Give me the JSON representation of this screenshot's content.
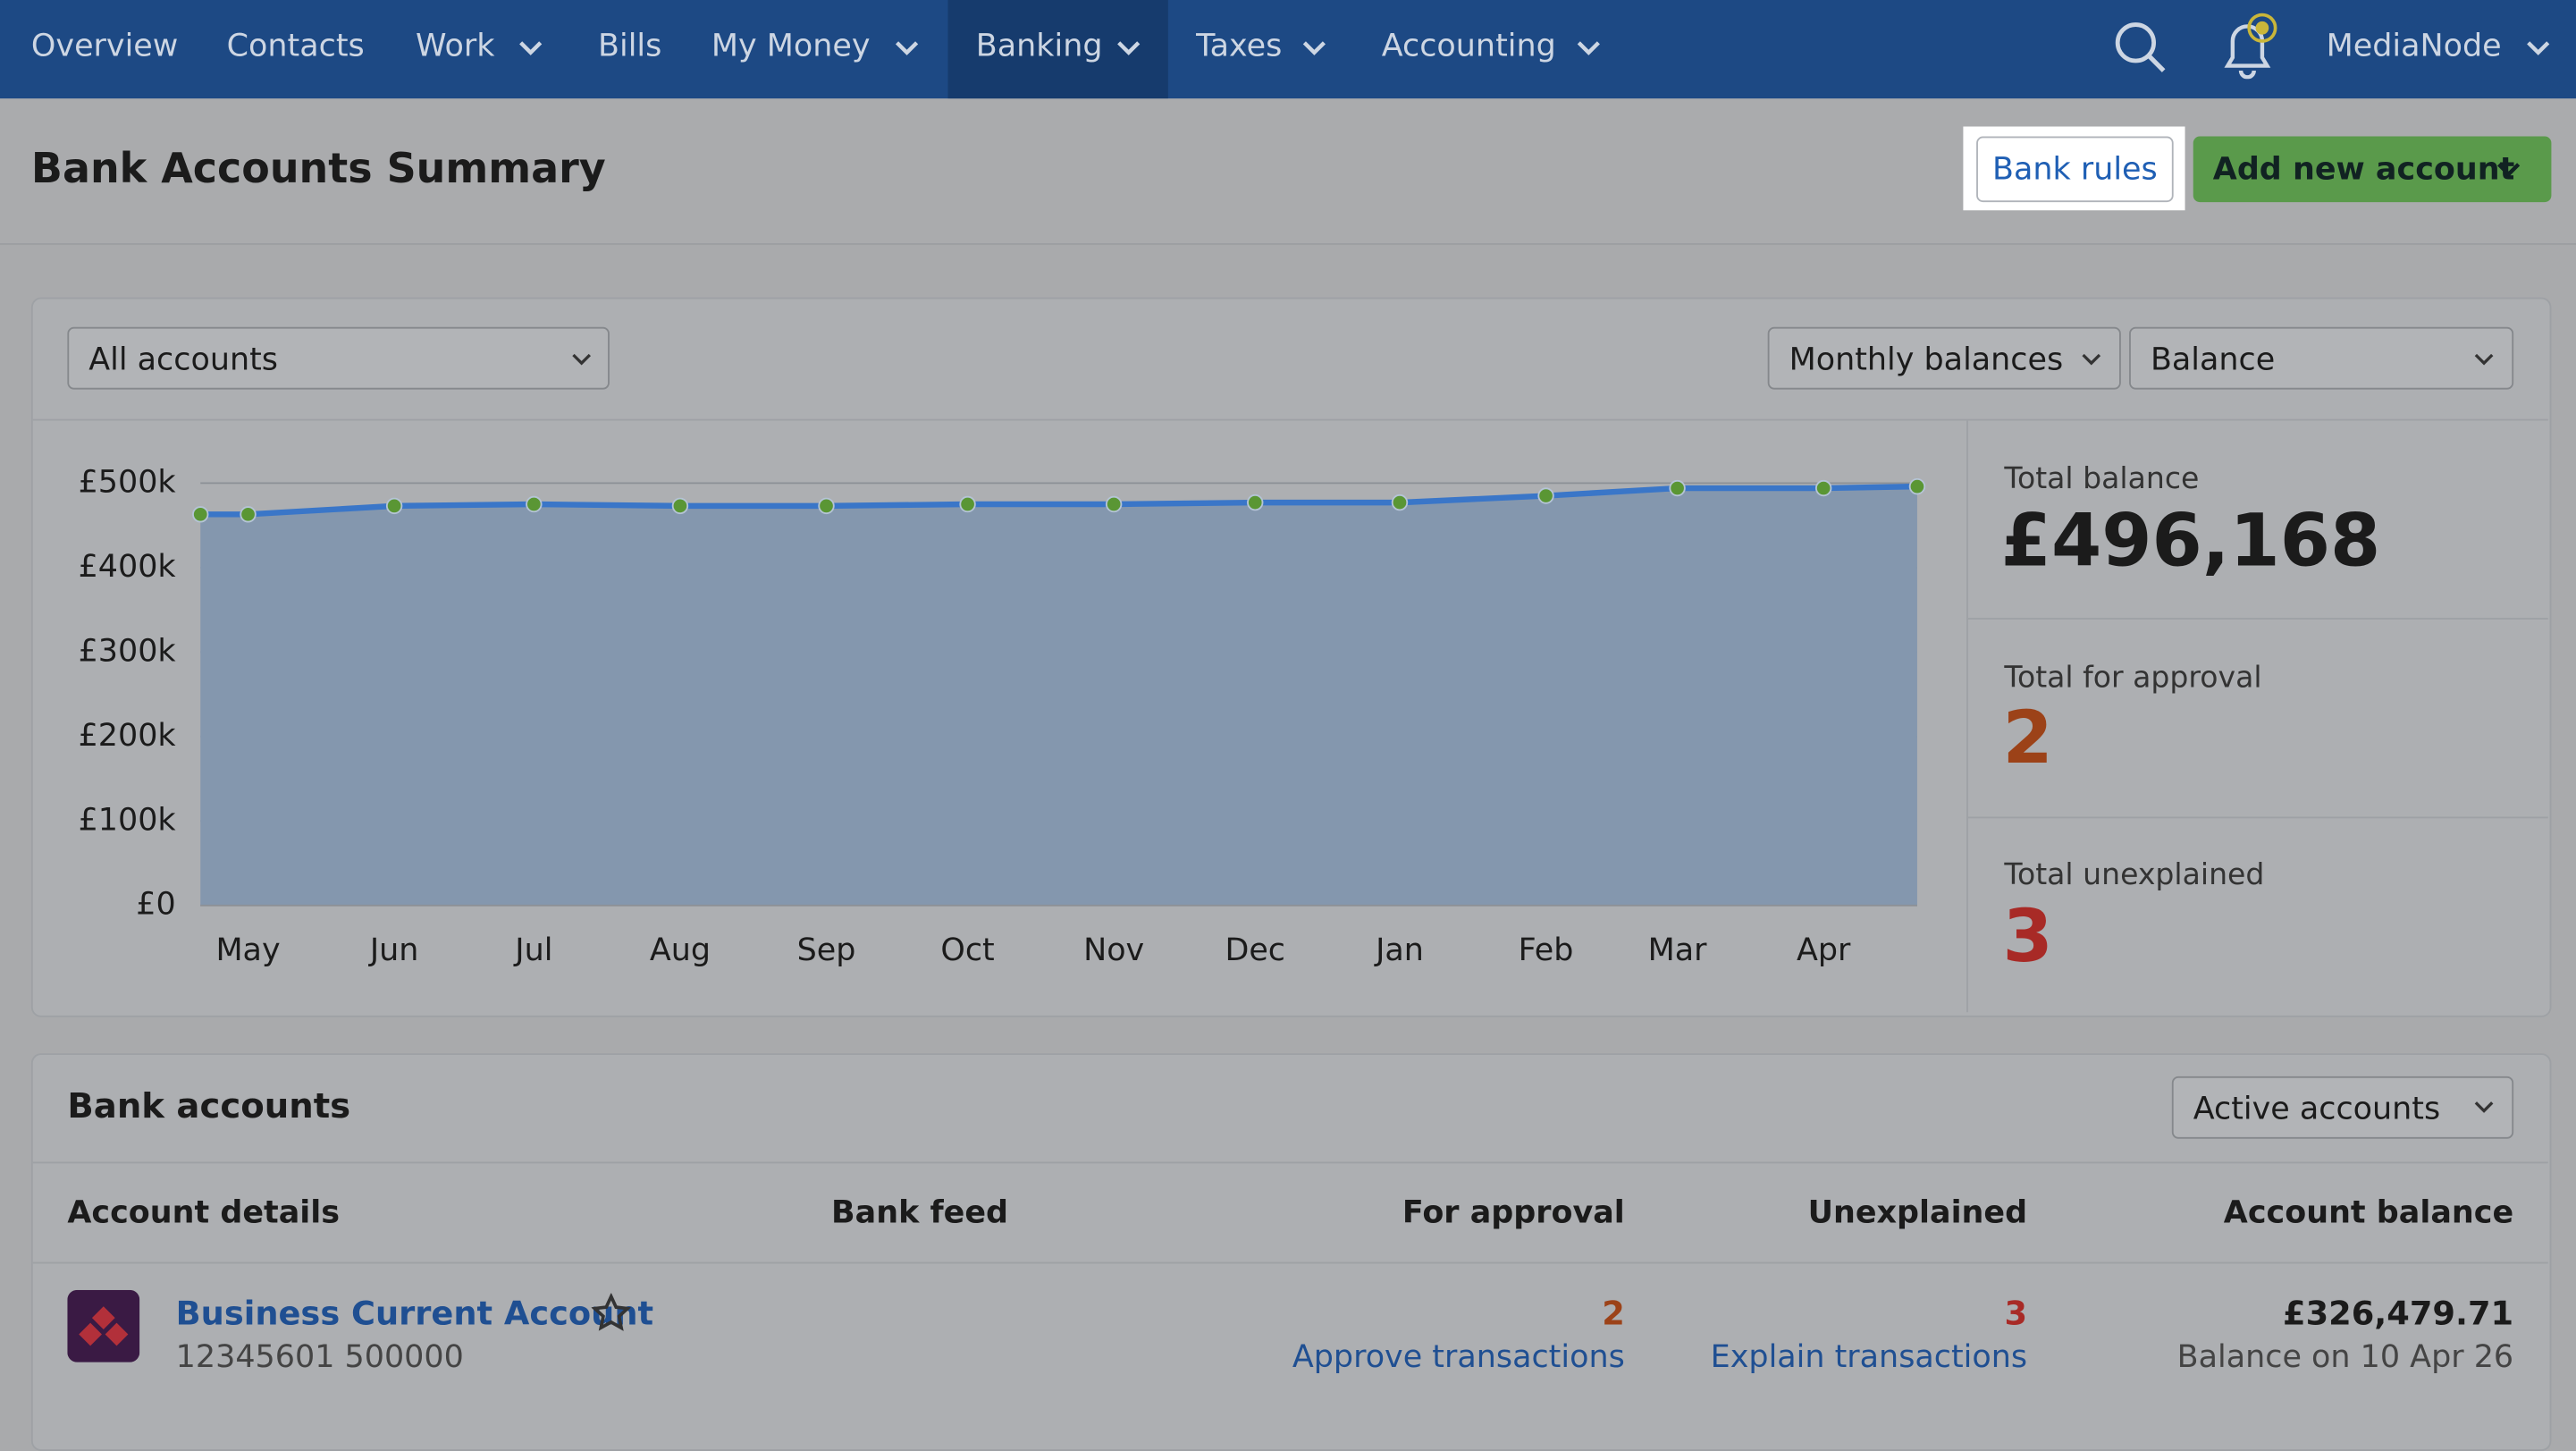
{
  "nav": {
    "items": [
      "Overview",
      "Contacts",
      "Work",
      "Bills",
      "My Money",
      "Banking",
      "Taxes",
      "Accounting"
    ],
    "user": "MediaNode"
  },
  "header": {
    "title": "Bank Accounts Summary",
    "bank_rules": "Bank rules",
    "add_account": "Add new account"
  },
  "filters": {
    "accounts": "All accounts",
    "period": "Monthly balances",
    "measure": "Balance"
  },
  "chart": {
    "type": "line",
    "categories": [
      null,
      "May",
      "Jun",
      "Jul",
      "Aug",
      "Sep",
      "Oct",
      "Nov",
      "Dec",
      "Jan",
      "Feb",
      "Mar",
      "Apr",
      null
    ],
    "values": [
      463000,
      463000,
      473000,
      475000,
      473000,
      473000,
      475000,
      475000,
      477000,
      477000,
      485000,
      494000,
      494000,
      496000
    ],
    "ylim": [
      0,
      500000
    ],
    "yticks": [
      {
        "value": 0,
        "label": "£0"
      },
      {
        "value": 100000,
        "label": "£100k"
      },
      {
        "value": 200000,
        "label": "£200k"
      },
      {
        "value": 300000,
        "label": "£300k"
      },
      {
        "value": 400000,
        "label": "£400k"
      },
      {
        "value": 500000,
        "label": "£500k"
      }
    ],
    "grid": true,
    "line_color": "#3a76c8",
    "fill_color": "#8497ae",
    "marker_color": "#5a9634"
  },
  "stats": [
    {
      "label": "Total balance",
      "value": "£496,168"
    },
    {
      "label": "Total for approval",
      "value": "2"
    },
    {
      "label": "Total unexplained",
      "value": "3"
    }
  ],
  "accounts": {
    "title": "Bank accounts",
    "filter": "Active accounts",
    "columns": [
      "Account details",
      "Bank feed",
      "For approval",
      "Unexplained",
      "Account balance"
    ],
    "rows": [
      {
        "name": "Business Current Account",
        "number": "12345601 500000",
        "for_approval": "2",
        "approve": "Approve transactions",
        "unexplained": "3",
        "explain": "Explain transactions",
        "balance": "£326,479.71",
        "balance_date": "Balance on 10 Apr 26"
      }
    ]
  }
}
